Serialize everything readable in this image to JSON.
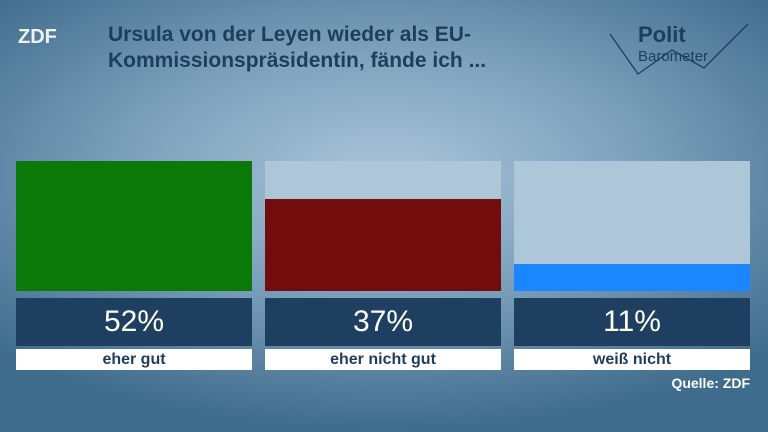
{
  "chart_data": {
    "type": "bar",
    "title": "Ursula von der Leyen wieder als EU-Kommissionspräsidentin, fände ich ...",
    "logo": "ZDF",
    "brand_top": "Polit",
    "brand_bottom": "Barometer",
    "categories": [
      "eher gut",
      "eher nicht gut",
      "weiß nicht"
    ],
    "values": [
      52,
      37,
      11
    ],
    "value_labels": [
      "52%",
      "37%",
      "11%"
    ],
    "colors": [
      "#0a790a",
      "#730d0d",
      "#1a86ff"
    ],
    "ylim": [
      0,
      52
    ],
    "source": "Quelle: ZDF"
  }
}
